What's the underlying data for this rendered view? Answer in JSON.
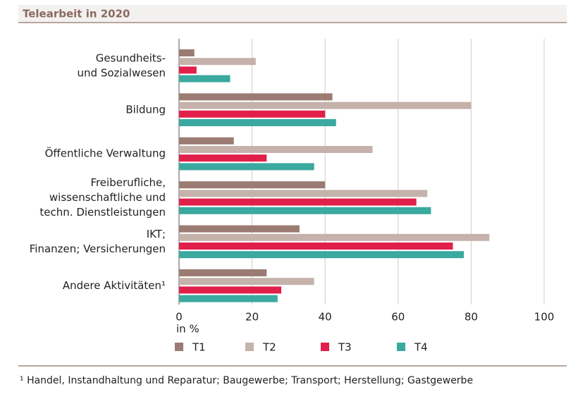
{
  "chart_data": {
    "type": "hbar",
    "title": "Telearbeit in 2020",
    "categories": [
      [
        "Gesundheits-",
        "und Sozialwesen"
      ],
      [
        "Bildung"
      ],
      [
        "Öffentliche Verwaltung"
      ],
      [
        "Freiberufliche,",
        "wissenschaftliche und",
        "techn. Dienstleistungen"
      ],
      [
        "IKT;",
        "Finanzen; Versicherungen"
      ],
      [
        "Andere Aktivitäten¹"
      ]
    ],
    "series": [
      {
        "name": "T1",
        "color": "#9b7b72",
        "values": [
          4.2,
          42,
          15,
          40,
          33,
          24
        ]
      },
      {
        "name": "T2",
        "color": "#c4b2ab",
        "values": [
          21,
          80,
          53,
          68,
          85,
          37
        ]
      },
      {
        "name": "T3",
        "color": "#e0204a",
        "values": [
          4.8,
          40,
          24,
          65,
          75,
          28
        ]
      },
      {
        "name": "T4",
        "color": "#3aa9a0",
        "values": [
          14,
          43,
          37,
          69,
          78,
          27
        ]
      }
    ],
    "xlim": [
      0,
      100
    ],
    "xticks": [
      0,
      20,
      40,
      60,
      80,
      100
    ],
    "x_label": "in %",
    "grid": true,
    "footnote": "¹ Handel, Instandhaltung und Reparatur; Baugewerbe; Transport; Herstellung; Gastgewerbe"
  }
}
